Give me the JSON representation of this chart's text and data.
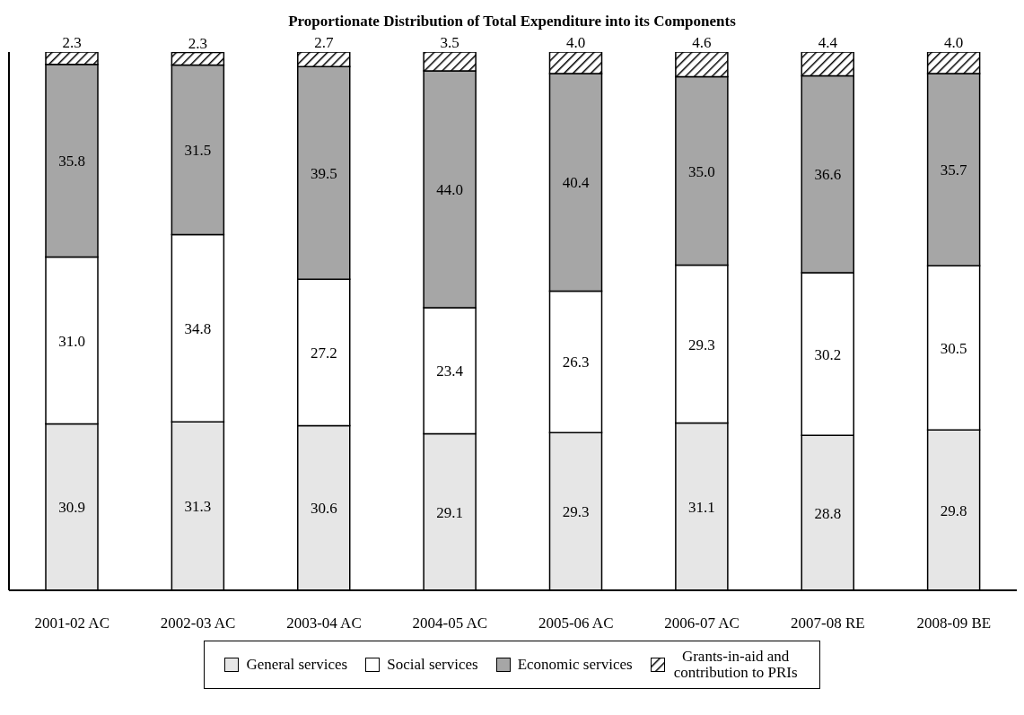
{
  "chart_data": {
    "type": "bar",
    "title": "Proportionate Distribution of Total Expenditure into its Components",
    "categories": [
      "2001-02 AC",
      "2002-03 AC",
      "2003-04 AC",
      "2004-05 AC",
      "2005-06 AC",
      "2006-07 AC",
      "2007-08 RE",
      "2008-09 BE"
    ],
    "stacked": true,
    "legend": "bottom",
    "tick_labels": "x",
    "ylim": [
      0,
      100
    ],
    "series": [
      {
        "name": "General services",
        "color": "#e6e6e6",
        "values": [
          30.9,
          31.3,
          30.6,
          29.1,
          29.3,
          31.1,
          28.8,
          29.8
        ],
        "value_labels": [
          "30.9",
          "31.3",
          "30.6",
          "29.1",
          "29.3",
          "31.1",
          "28.8",
          "29.8"
        ]
      },
      {
        "name": "Social services",
        "color": "#ffffff",
        "values": [
          31.0,
          34.8,
          27.2,
          23.4,
          26.3,
          29.3,
          30.2,
          30.5
        ],
        "value_labels": [
          "31.0",
          "34.8",
          "27.2",
          "23.4",
          "26.3",
          "29.3",
          "30.2",
          "30.5"
        ]
      },
      {
        "name": "Economic services",
        "color": "#a6a6a6",
        "values": [
          35.8,
          31.5,
          39.5,
          44.0,
          40.4,
          35.0,
          36.6,
          35.7
        ],
        "value_labels": [
          "35.8",
          "31.5",
          "39.5",
          "44.0",
          "40.4",
          "35.0",
          "36.6",
          "35.7"
        ]
      },
      {
        "name": "Grants-in-aid and contribution to PRIs",
        "color": "#000000",
        "values": [
          2.3,
          2.3,
          2.7,
          3.5,
          4.0,
          4.6,
          4.4,
          4.0
        ],
        "value_labels": [
          "2.3",
          "2.3",
          "2.7",
          "3.5",
          "4.0",
          "4.6",
          "4.4",
          "4.0"
        ]
      }
    ]
  }
}
